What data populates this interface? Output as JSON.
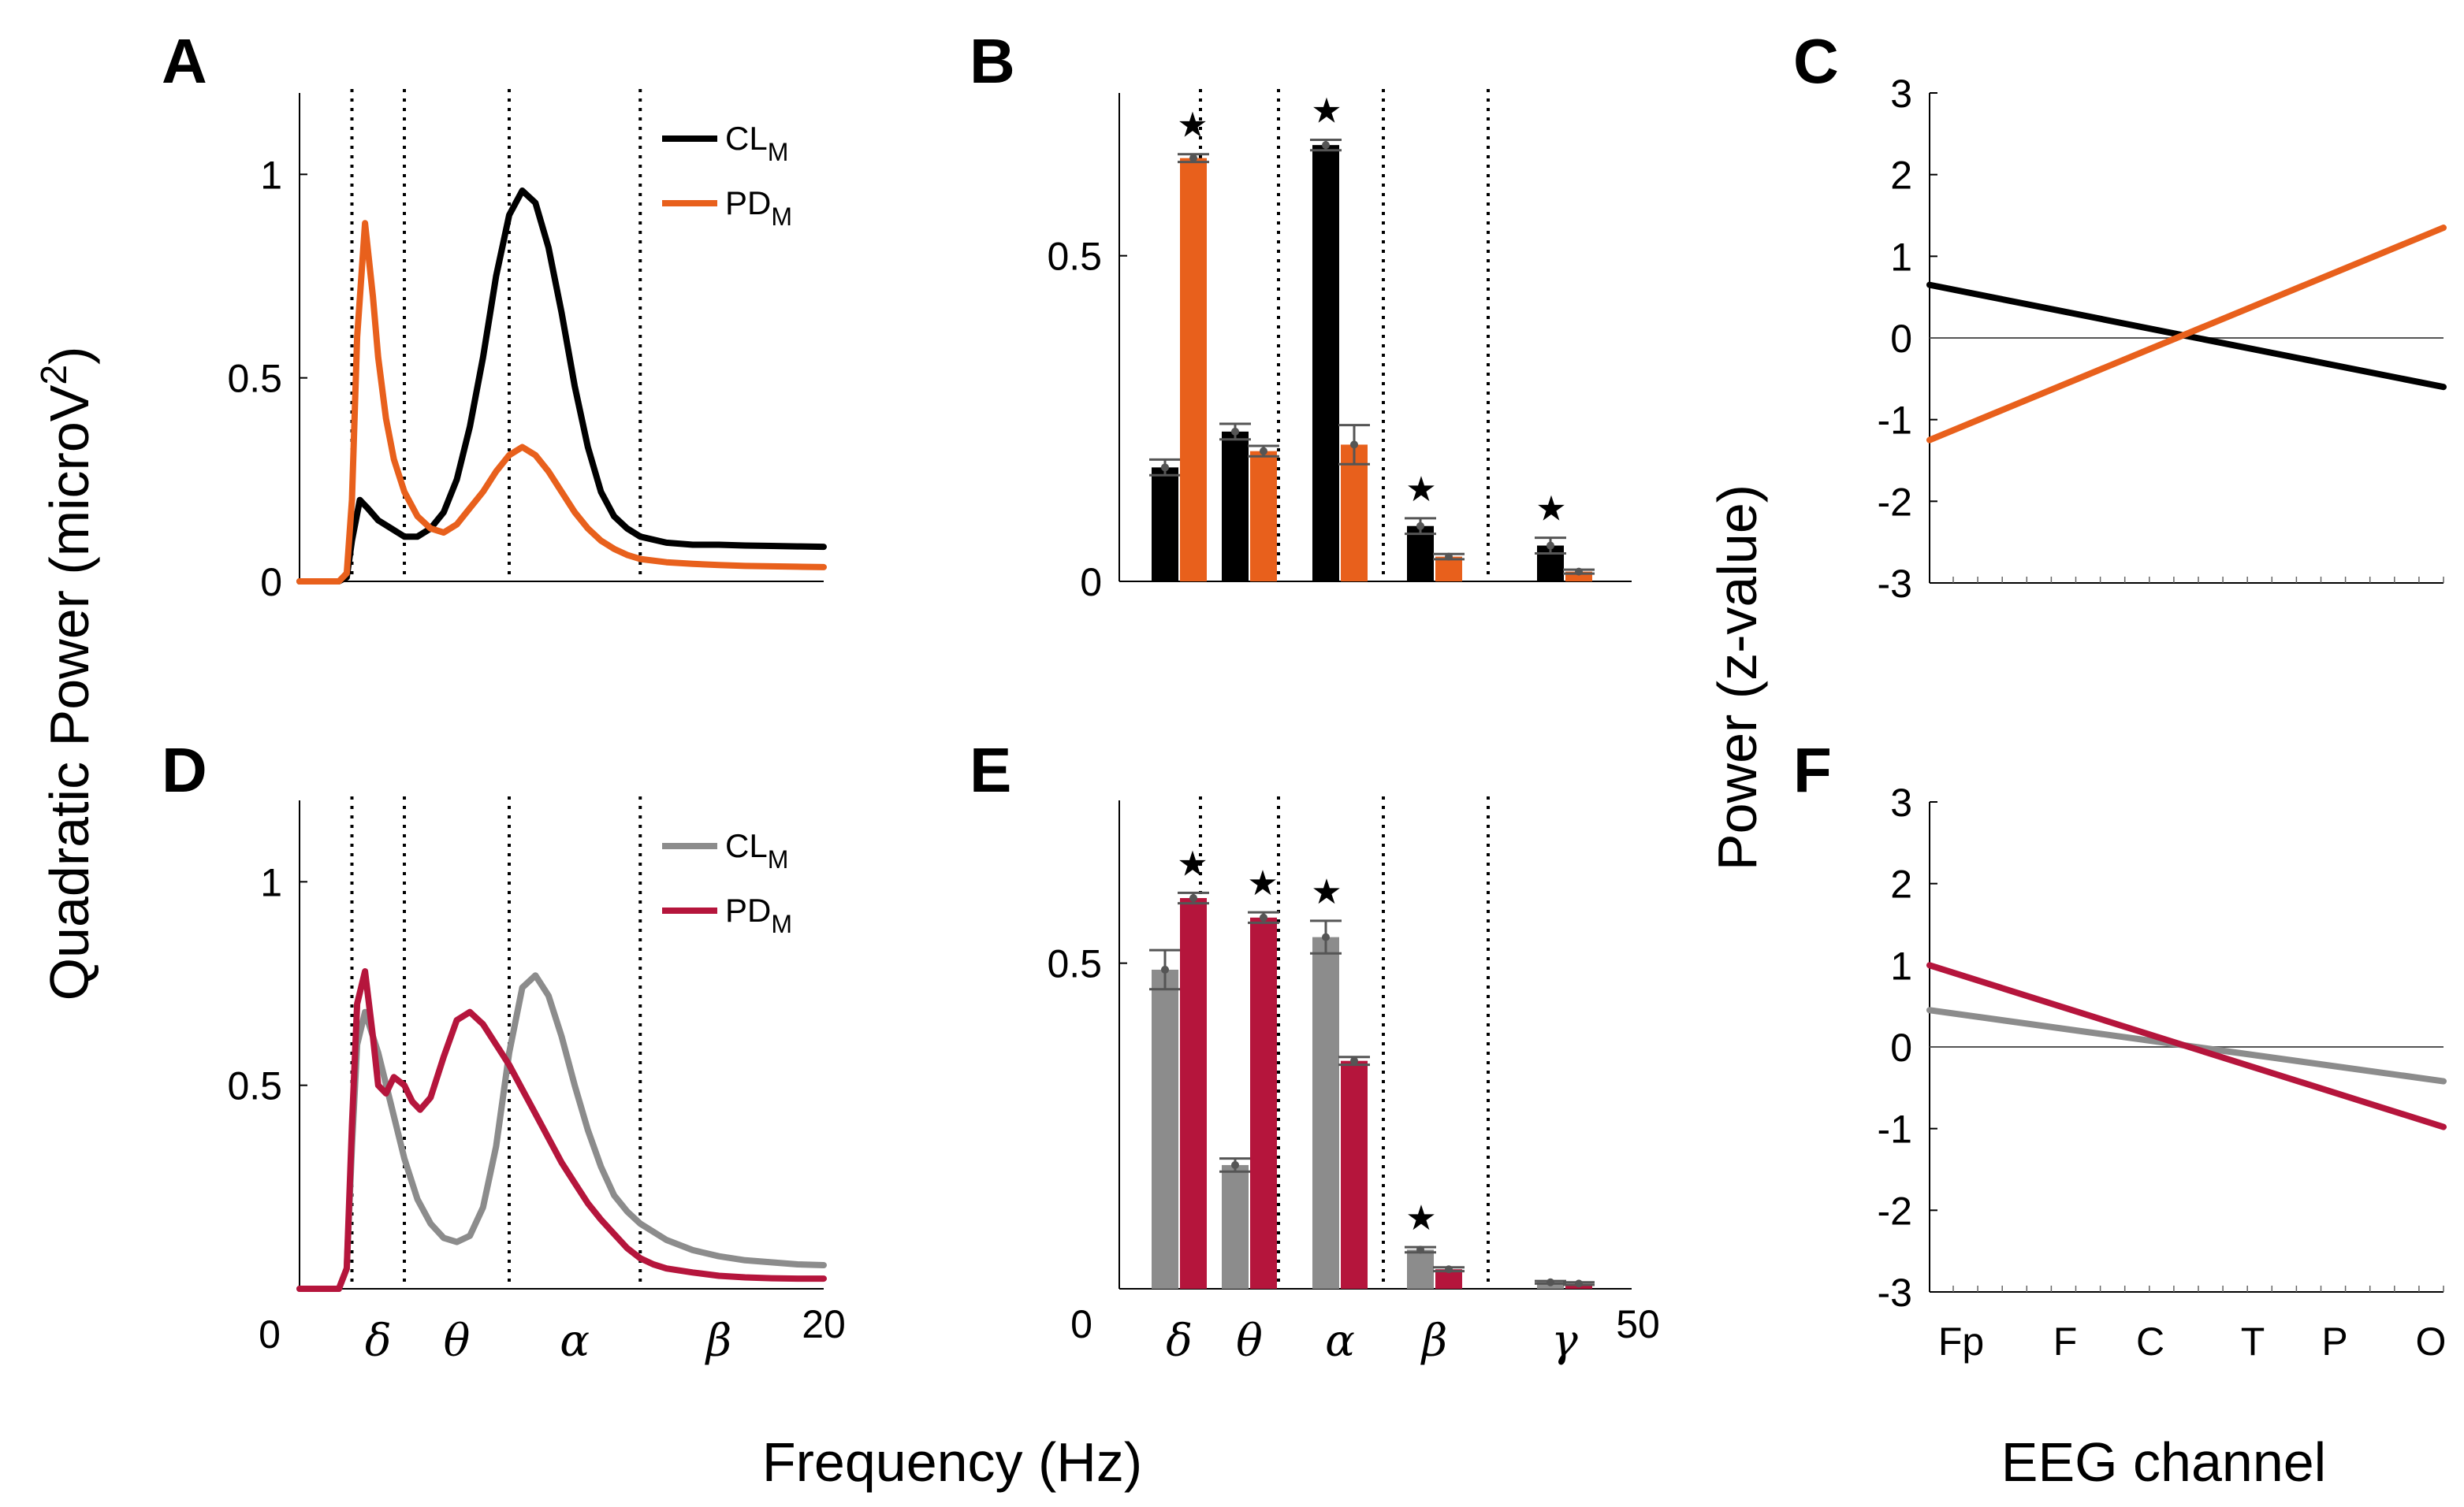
{
  "figure": {
    "y_label_left": "Quadratic Power (microV²)",
    "y_label_left_main": "Quadratic Power (microV",
    "y_label_left_sup": "2",
    "y_label_left_close": ")",
    "y_label_right": "Power (z-value)",
    "x_label_mid": "Frequency (Hz)",
    "x_label_right": "EEG channel"
  },
  "chart_data": [
    {
      "panel": "A",
      "type": "line",
      "xlim": [
        0,
        20
      ],
      "ylim": [
        0,
        1.2
      ],
      "yticks": [
        0,
        0.5,
        1
      ],
      "ytick_labels": [
        "0",
        "0.5",
        "1"
      ],
      "band_boundaries_hz": [
        2,
        4,
        8,
        13
      ],
      "legend": [
        {
          "name": "CL",
          "sub": "M",
          "color": "#000000"
        },
        {
          "name": "PD",
          "sub": "M",
          "color": "#e8601c"
        }
      ],
      "series": [
        {
          "name": "CL_M",
          "color": "#000000",
          "x": [
            0,
            1.5,
            1.8,
            2.0,
            2.3,
            2.6,
            3.0,
            3.5,
            4.0,
            4.5,
            5.0,
            5.5,
            6.0,
            6.5,
            7.0,
            7.5,
            8.0,
            8.5,
            9.0,
            9.5,
            10.0,
            10.5,
            11.0,
            11.5,
            12.0,
            12.5,
            13.0,
            14.0,
            15.0,
            16.0,
            17.0,
            18.0,
            19.0,
            20.0
          ],
          "values": [
            0.0,
            0.0,
            0.01,
            0.1,
            0.2,
            0.18,
            0.15,
            0.13,
            0.11,
            0.11,
            0.13,
            0.17,
            0.25,
            0.38,
            0.55,
            0.75,
            0.9,
            0.96,
            0.93,
            0.82,
            0.66,
            0.48,
            0.33,
            0.22,
            0.16,
            0.13,
            0.11,
            0.095,
            0.09,
            0.09,
            0.088,
            0.087,
            0.086,
            0.085
          ]
        },
        {
          "name": "PD_M",
          "color": "#e8601c",
          "x": [
            0,
            1.5,
            1.8,
            2.0,
            2.2,
            2.5,
            2.8,
            3.0,
            3.3,
            3.6,
            4.0,
            4.5,
            5.0,
            5.5,
            6.0,
            6.5,
            7.0,
            7.5,
            8.0,
            8.5,
            9.0,
            9.5,
            10.0,
            10.5,
            11.0,
            11.5,
            12.0,
            12.5,
            13.0,
            14.0,
            15.0,
            16.0,
            17.0,
            18.0,
            19.0,
            20.0
          ],
          "values": [
            0.0,
            0.0,
            0.02,
            0.2,
            0.6,
            0.88,
            0.7,
            0.55,
            0.4,
            0.3,
            0.22,
            0.16,
            0.13,
            0.12,
            0.14,
            0.18,
            0.22,
            0.27,
            0.31,
            0.33,
            0.31,
            0.27,
            0.22,
            0.17,
            0.13,
            0.1,
            0.08,
            0.065,
            0.055,
            0.047,
            0.043,
            0.04,
            0.038,
            0.037,
            0.036,
            0.035
          ]
        }
      ]
    },
    {
      "panel": "B",
      "type": "bar",
      "categories": [
        "δ",
        "θ",
        "α",
        "β",
        "γ"
      ],
      "ylim": [
        0,
        0.75
      ],
      "yticks": [
        0,
        0.5
      ],
      "ytick_labels": [
        "0",
        "0.5"
      ],
      "significant": [
        true,
        false,
        true,
        true,
        true
      ],
      "series": [
        {
          "name": "CL_M",
          "color": "#000000",
          "values": [
            0.175,
            0.23,
            0.67,
            0.085,
            0.055
          ],
          "errors": [
            0.012,
            0.012,
            0.008,
            0.012,
            0.012
          ]
        },
        {
          "name": "PD_M",
          "color": "#e8601c",
          "values": [
            0.65,
            0.2,
            0.21,
            0.038,
            0.015
          ],
          "errors": [
            0.006,
            0.008,
            0.03,
            0.004,
            0.003
          ]
        }
      ]
    },
    {
      "panel": "C",
      "type": "line",
      "ylim": [
        -3,
        3
      ],
      "yticks": [
        -3,
        -2,
        -1,
        0,
        1,
        2,
        3
      ],
      "ytick_labels": [
        "-3",
        "-2",
        "-1",
        "0",
        "1",
        "2",
        "3"
      ],
      "x_categories": [
        "Fp",
        "F",
        "C",
        "T",
        "P",
        "O"
      ],
      "show_xtick_labels": false,
      "series": [
        {
          "name": "CL_M",
          "color": "#000000",
          "start": 0.65,
          "end": -0.6
        },
        {
          "name": "PD_M",
          "color": "#e8601c",
          "start": -1.25,
          "end": 1.35
        }
      ]
    },
    {
      "panel": "D",
      "type": "line",
      "xlim": [
        0,
        20
      ],
      "ylim": [
        0,
        1.2
      ],
      "yticks": [
        0.5,
        1
      ],
      "ytick_labels": [
        "0.5",
        "1"
      ],
      "xtick_labels": [
        "0",
        "20"
      ],
      "band_labels": [
        "δ",
        "θ",
        "α",
        "β"
      ],
      "band_label_x_hz": [
        3,
        6,
        10.5,
        16
      ],
      "band_boundaries_hz": [
        2,
        4,
        8,
        13
      ],
      "legend": [
        {
          "name": "CL",
          "sub": "M",
          "color": "#8c8c8c"
        },
        {
          "name": "PD",
          "sub": "M",
          "color": "#b5153c"
        }
      ],
      "series": [
        {
          "name": "CL_M",
          "color": "#8c8c8c",
          "x": [
            0,
            1.5,
            1.8,
            2.0,
            2.2,
            2.5,
            3.0,
            3.5,
            4.0,
            4.5,
            5.0,
            5.5,
            6.0,
            6.5,
            7.0,
            7.5,
            8.0,
            8.5,
            9.0,
            9.5,
            10.0,
            10.5,
            11.0,
            11.5,
            12.0,
            12.5,
            13.0,
            14.0,
            15.0,
            16.0,
            17.0,
            18.0,
            19.0,
            20.0
          ],
          "values": [
            0.0,
            0.0,
            0.05,
            0.35,
            0.6,
            0.68,
            0.58,
            0.45,
            0.32,
            0.22,
            0.16,
            0.125,
            0.115,
            0.13,
            0.2,
            0.35,
            0.58,
            0.74,
            0.77,
            0.72,
            0.62,
            0.5,
            0.39,
            0.3,
            0.23,
            0.19,
            0.16,
            0.12,
            0.095,
            0.08,
            0.07,
            0.065,
            0.06,
            0.058
          ]
        },
        {
          "name": "PD_M",
          "color": "#b5153c",
          "x": [
            0,
            1.5,
            1.8,
            2.0,
            2.2,
            2.5,
            2.8,
            3.0,
            3.3,
            3.6,
            4.0,
            4.3,
            4.6,
            5.0,
            5.5,
            6.0,
            6.5,
            7.0,
            7.5,
            8.0,
            8.5,
            9.0,
            9.5,
            10.0,
            10.5,
            11.0,
            11.5,
            12.0,
            12.5,
            13.0,
            13.5,
            14.0,
            15.0,
            16.0,
            17.0,
            18.0,
            19.0,
            20.0
          ],
          "values": [
            0.0,
            0.0,
            0.05,
            0.4,
            0.7,
            0.78,
            0.62,
            0.5,
            0.48,
            0.52,
            0.5,
            0.46,
            0.44,
            0.47,
            0.57,
            0.66,
            0.68,
            0.65,
            0.6,
            0.55,
            0.49,
            0.43,
            0.37,
            0.31,
            0.26,
            0.21,
            0.17,
            0.135,
            0.1,
            0.075,
            0.06,
            0.05,
            0.04,
            0.032,
            0.028,
            0.026,
            0.025,
            0.025
          ]
        }
      ]
    },
    {
      "panel": "E",
      "type": "bar",
      "categories": [
        "δ",
        "θ",
        "α",
        "β",
        "γ"
      ],
      "ylim": [
        0,
        0.75
      ],
      "yticks": [
        0.5
      ],
      "ytick_labels": [
        "0.5"
      ],
      "xtick_labels": [
        "0",
        "50"
      ],
      "significant": [
        true,
        true,
        true,
        true,
        false
      ],
      "series": [
        {
          "name": "CL_M",
          "color": "#8c8c8c",
          "values": [
            0.49,
            0.19,
            0.54,
            0.06,
            0.01
          ],
          "errors": [
            0.03,
            0.01,
            0.025,
            0.004,
            0.002
          ]
        },
        {
          "name": "PD_M",
          "color": "#b5153c",
          "values": [
            0.6,
            0.57,
            0.35,
            0.03,
            0.008
          ],
          "errors": [
            0.008,
            0.008,
            0.006,
            0.003,
            0.002
          ]
        }
      ]
    },
    {
      "panel": "F",
      "type": "line",
      "ylim": [
        -3,
        3
      ],
      "yticks": [
        -3,
        -2,
        -1,
        0,
        1,
        2,
        3
      ],
      "ytick_labels": [
        "-3",
        "-2",
        "-1",
        "0",
        "1",
        "2",
        "3"
      ],
      "x_categories": [
        "Fp",
        "F",
        "C",
        "T",
        "P",
        "O"
      ],
      "show_xtick_labels": true,
      "series": [
        {
          "name": "CL_M",
          "color": "#8c8c8c",
          "start": 0.45,
          "end": -0.42
        },
        {
          "name": "PD_M",
          "color": "#b5153c",
          "start": 1.0,
          "end": -0.98
        }
      ]
    }
  ]
}
